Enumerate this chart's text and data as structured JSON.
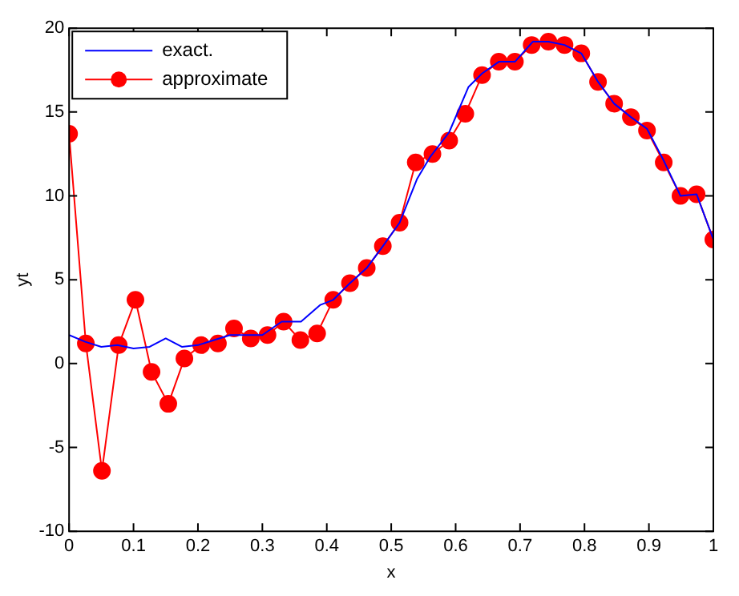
{
  "chart_data": {
    "type": "line",
    "xlabel": "x",
    "ylabel": "yt",
    "xlim": [
      0,
      1
    ],
    "ylim": [
      -10,
      20
    ],
    "xticks": [
      0,
      0.1,
      0.2,
      0.3,
      0.4,
      0.5,
      0.6,
      0.7,
      0.8,
      0.9,
      1
    ],
    "yticks": [
      -10,
      -5,
      0,
      5,
      10,
      15,
      20
    ],
    "grid": false,
    "legend": "top left",
    "series": [
      {
        "name": "exact.",
        "color": "#0000ff",
        "marker": "none",
        "x": [
          0,
          0.025,
          0.05,
          0.075,
          0.1,
          0.125,
          0.15,
          0.175,
          0.2,
          0.25,
          0.3,
          0.33,
          0.36,
          0.39,
          0.41,
          0.436,
          0.462,
          0.487,
          0.513,
          0.54,
          0.56,
          0.59,
          0.62,
          0.641,
          0.667,
          0.692,
          0.72,
          0.744,
          0.769,
          0.795,
          0.821,
          0.846,
          0.872,
          0.897,
          0.923,
          0.949,
          0.974,
          1
        ],
        "values": [
          1.7,
          1.3,
          1.0,
          1.1,
          0.9,
          1.0,
          1.5,
          1.0,
          1.1,
          1.7,
          1.7,
          2.5,
          2.5,
          3.5,
          3.8,
          4.8,
          5.7,
          7.0,
          8.4,
          11.0,
          12.3,
          13.8,
          16.5,
          17.3,
          18.0,
          18.0,
          19.2,
          19.2,
          19.0,
          18.5,
          16.8,
          15.5,
          14.7,
          14.0,
          12.1,
          10.0,
          10.1,
          7.4
        ]
      },
      {
        "name": "approximate",
        "color": "#ff0000",
        "marker": "circle",
        "x": [
          0,
          0.026,
          0.051,
          0.077,
          0.103,
          0.128,
          0.154,
          0.179,
          0.205,
          0.231,
          0.256,
          0.282,
          0.308,
          0.333,
          0.359,
          0.385,
          0.41,
          0.436,
          0.462,
          0.487,
          0.513,
          0.538,
          0.564,
          0.59,
          0.615,
          0.641,
          0.667,
          0.692,
          0.718,
          0.744,
          0.769,
          0.795,
          0.821,
          0.846,
          0.872,
          0.897,
          0.923,
          0.949,
          0.974,
          1
        ],
        "values": [
          13.7,
          1.2,
          -6.4,
          1.1,
          3.8,
          -0.5,
          -2.4,
          0.3,
          1.1,
          1.2,
          2.1,
          1.5,
          1.7,
          2.5,
          1.4,
          1.8,
          3.8,
          4.8,
          5.7,
          7.0,
          8.4,
          12.0,
          12.5,
          13.3,
          14.9,
          17.2,
          18.0,
          18.0,
          19.0,
          19.2,
          19.0,
          18.5,
          16.8,
          15.5,
          14.7,
          13.9,
          12.0,
          10.0,
          10.1,
          7.4
        ]
      }
    ]
  }
}
